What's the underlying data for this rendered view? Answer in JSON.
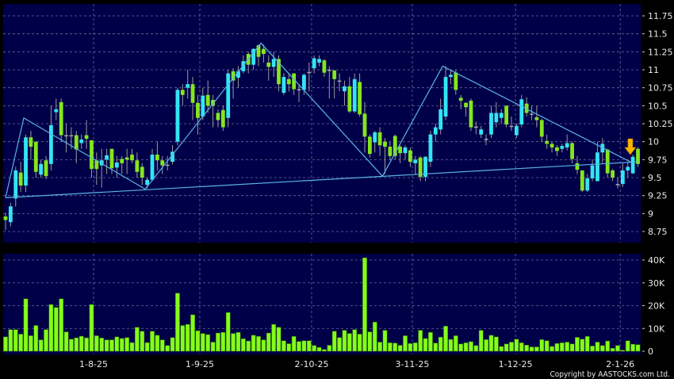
{
  "chart_data": [
    {
      "type": "candlestick",
      "panel": "price",
      "ylim": [
        8.7,
        11.9
      ],
      "yticks": [
        8.75,
        9,
        9.25,
        9.5,
        9.75,
        10,
        10.25,
        10.5,
        10.75,
        11,
        11.25,
        11.5,
        11.75
      ],
      "grid": true,
      "colors": {
        "up": "#33e4f4",
        "down": "#84e61c",
        "unchanged": "#a8a8a8",
        "wick": "#9a9a9a",
        "trendline": "#5ab4e6",
        "background": "#000048",
        "marker": "#f5b400"
      },
      "ohlc": [
        [
          8.96,
          9.01,
          8.77,
          8.91
        ],
        [
          8.88,
          9.15,
          8.82,
          9.1
        ],
        [
          9.21,
          9.65,
          9.1,
          9.6
        ],
        [
          9.57,
          9.72,
          9.3,
          9.39
        ],
        [
          9.39,
          10.1,
          9.3,
          10.06
        ],
        [
          10.06,
          10.15,
          9.75,
          9.93
        ],
        [
          10.0,
          10.0,
          9.5,
          9.58
        ],
        [
          9.54,
          9.75,
          9.5,
          9.69
        ],
        [
          9.74,
          9.8,
          9.48,
          9.52
        ],
        [
          9.69,
          10.5,
          9.6,
          10.23
        ],
        [
          10.41,
          10.6,
          10.3,
          10.45
        ],
        [
          10.55,
          10.6,
          10.0,
          10.09
        ],
        [
          10.09,
          10.25,
          9.85,
          10.09
        ],
        [
          10.09,
          10.2,
          9.9,
          10.09
        ],
        [
          10.09,
          10.15,
          9.7,
          9.89
        ],
        [
          9.98,
          10.1,
          9.9,
          10.03
        ],
        [
          10.09,
          10.3,
          9.9,
          10.04
        ],
        [
          10.02,
          10.02,
          9.5,
          9.62
        ],
        [
          9.74,
          9.85,
          9.4,
          9.62
        ],
        [
          9.67,
          9.9,
          9.36,
          9.74
        ],
        [
          9.75,
          9.9,
          9.55,
          9.81
        ],
        [
          9.9,
          9.9,
          9.55,
          9.63
        ],
        [
          9.64,
          9.8,
          9.5,
          9.71
        ],
        [
          9.76,
          9.8,
          9.55,
          9.7
        ],
        [
          9.78,
          9.9,
          9.55,
          9.75
        ],
        [
          9.82,
          9.9,
          9.7,
          9.74
        ],
        [
          9.74,
          9.85,
          9.5,
          9.58
        ],
        [
          9.65,
          9.7,
          9.4,
          9.5
        ],
        [
          9.4,
          9.5,
          9.35,
          9.47
        ],
        [
          9.47,
          9.9,
          9.45,
          9.82
        ],
        [
          9.82,
          10.0,
          9.6,
          9.74
        ],
        [
          9.74,
          9.8,
          9.55,
          9.67
        ],
        [
          9.68,
          9.8,
          9.6,
          9.68
        ],
        [
          9.72,
          9.95,
          9.68,
          9.86
        ],
        [
          10.0,
          10.75,
          9.95,
          10.72
        ],
        [
          10.72,
          10.8,
          10.5,
          10.65
        ],
        [
          10.75,
          11.0,
          10.6,
          10.8
        ],
        [
          10.8,
          10.9,
          10.3,
          10.54
        ],
        [
          10.54,
          10.65,
          10.1,
          10.33
        ],
        [
          10.35,
          10.75,
          10.3,
          10.64
        ],
        [
          10.65,
          10.85,
          10.4,
          10.5
        ],
        [
          10.58,
          10.65,
          10.2,
          10.5
        ],
        [
          10.4,
          10.45,
          10.2,
          10.3
        ],
        [
          10.44,
          10.5,
          10.15,
          10.2
        ],
        [
          10.33,
          11.0,
          10.2,
          10.95
        ],
        [
          10.98,
          11.02,
          10.6,
          10.85
        ],
        [
          10.89,
          11.05,
          10.75,
          10.98
        ],
        [
          10.98,
          11.2,
          10.95,
          11.12
        ],
        [
          11.22,
          11.25,
          10.95,
          11.07
        ],
        [
          11.07,
          11.3,
          11.0,
          11.29
        ],
        [
          11.34,
          11.35,
          11.05,
          11.18
        ],
        [
          11.29,
          11.35,
          11.1,
          11.22
        ],
        [
          11.1,
          11.2,
          10.85,
          11.04
        ],
        [
          11.04,
          11.25,
          10.9,
          11.15
        ],
        [
          11.15,
          11.2,
          10.7,
          10.8
        ],
        [
          10.68,
          10.95,
          10.65,
          10.9
        ],
        [
          10.87,
          10.95,
          10.7,
          10.8
        ],
        [
          10.95,
          10.95,
          10.65,
          10.73
        ],
        [
          10.73,
          10.8,
          10.55,
          10.73
        ],
        [
          10.72,
          10.95,
          10.65,
          10.93
        ],
        [
          10.97,
          11.1,
          10.7,
          10.97
        ],
        [
          11.02,
          11.2,
          10.95,
          11.16
        ],
        [
          11.1,
          11.2,
          11.05,
          11.15
        ],
        [
          11.13,
          11.15,
          10.9,
          10.96
        ],
        [
          11.0,
          11.05,
          10.6,
          11.0
        ],
        [
          10.99,
          11.0,
          10.6,
          10.87
        ],
        [
          10.85,
          10.95,
          10.7,
          10.85
        ],
        [
          10.7,
          10.85,
          10.5,
          10.77
        ],
        [
          10.77,
          10.9,
          10.4,
          10.42
        ],
        [
          10.42,
          10.95,
          10.4,
          10.87
        ],
        [
          10.83,
          10.95,
          10.35,
          10.38
        ],
        [
          10.39,
          10.55,
          9.85,
          10.07
        ],
        [
          10.07,
          10.1,
          9.78,
          9.83
        ],
        [
          9.99,
          10.15,
          9.85,
          10.13
        ],
        [
          10.13,
          10.2,
          9.8,
          9.95
        ],
        [
          10.0,
          10.05,
          9.55,
          9.93
        ],
        [
          9.93,
          10.0,
          9.75,
          9.8
        ],
        [
          10.08,
          10.1,
          9.75,
          9.8
        ],
        [
          9.93,
          9.95,
          9.7,
          9.84
        ],
        [
          9.84,
          9.95,
          9.75,
          9.92
        ],
        [
          9.88,
          9.92,
          9.65,
          9.72
        ],
        [
          9.7,
          9.8,
          9.55,
          9.75
        ],
        [
          9.78,
          9.8,
          9.45,
          9.51
        ],
        [
          9.51,
          9.8,
          9.45,
          9.79
        ],
        [
          9.72,
          10.15,
          9.65,
          10.1
        ],
        [
          10.1,
          10.25,
          10.0,
          10.2
        ],
        [
          10.17,
          10.6,
          10.1,
          10.45
        ],
        [
          10.35,
          11.05,
          10.3,
          10.9
        ],
        [
          10.9,
          11.0,
          10.8,
          10.93
        ],
        [
          10.96,
          11.0,
          10.65,
          10.72
        ],
        [
          10.61,
          10.65,
          10.45,
          10.57
        ],
        [
          10.54,
          10.55,
          10.35,
          10.48
        ],
        [
          10.57,
          10.6,
          10.15,
          10.2
        ],
        [
          10.21,
          10.28,
          10.1,
          10.21
        ],
        [
          10.1,
          10.22,
          10.05,
          10.17
        ],
        [
          10.04,
          10.1,
          9.95,
          10.04
        ],
        [
          10.1,
          10.5,
          10.05,
          10.4
        ],
        [
          10.27,
          10.55,
          10.2,
          10.4
        ],
        [
          10.33,
          10.45,
          10.25,
          10.4
        ],
        [
          10.5,
          10.5,
          10.2,
          10.24
        ],
        [
          10.22,
          10.35,
          10.15,
          10.22
        ],
        [
          10.09,
          10.25,
          10.05,
          10.22
        ],
        [
          10.24,
          10.65,
          10.2,
          10.59
        ],
        [
          10.53,
          10.62,
          10.35,
          10.4
        ],
        [
          10.39,
          10.5,
          10.3,
          10.39
        ],
        [
          10.34,
          10.5,
          10.2,
          10.3
        ],
        [
          10.3,
          10.32,
          10.0,
          10.07
        ],
        [
          10.01,
          10.1,
          9.9,
          9.97
        ],
        [
          9.97,
          10.0,
          9.85,
          9.92
        ],
        [
          9.92,
          9.95,
          9.8,
          9.87
        ],
        [
          9.9,
          9.97,
          9.85,
          9.94
        ],
        [
          9.92,
          10.1,
          9.88,
          9.98
        ],
        [
          9.98,
          10.0,
          9.7,
          9.76
        ],
        [
          9.7,
          9.8,
          9.55,
          9.61
        ],
        [
          9.6,
          9.6,
          9.3,
          9.32
        ],
        [
          9.32,
          9.55,
          9.3,
          9.49
        ],
        [
          9.49,
          9.75,
          9.45,
          9.67
        ],
        [
          9.45,
          10.0,
          9.45,
          9.85
        ],
        [
          9.85,
          10.05,
          9.7,
          9.97
        ],
        [
          9.89,
          9.9,
          9.5,
          9.56
        ],
        [
          9.6,
          9.62,
          9.45,
          9.5
        ],
        [
          9.41,
          9.5,
          9.35,
          9.41
        ],
        [
          9.41,
          9.7,
          9.37,
          9.6
        ],
        [
          9.6,
          9.72,
          9.5,
          9.65
        ],
        [
          9.56,
          9.82,
          9.55,
          9.79
        ],
        [
          9.9,
          9.92,
          9.65,
          9.69
        ]
      ],
      "trendlines": [
        {
          "points": [
            [
              0,
              9.22
            ],
            [
              3.6,
              10.33
            ],
            [
              27.6,
              9.34
            ],
            [
              50.5,
              11.37
            ],
            [
              74.5,
              9.52
            ],
            [
              86.4,
              11.05
            ],
            [
              123.5,
              9.72
            ]
          ]
        },
        {
          "points": [
            [
              0,
              9.22
            ],
            [
              125,
              9.72
            ]
          ]
        }
      ],
      "marker": {
        "type": "down-arrow",
        "bar": 123.5,
        "price": 9.82
      }
    },
    {
      "type": "bar",
      "panel": "volume",
      "ylim": [
        0,
        44000
      ],
      "yticks": [
        {
          "value": 0,
          "label": "0"
        },
        {
          "value": 10000,
          "label": "10K"
        },
        {
          "value": 20000,
          "label": "20K"
        },
        {
          "value": 30000,
          "label": "30K"
        },
        {
          "value": 40000,
          "label": "40K"
        }
      ],
      "grid": true,
      "colors": {
        "bar": "#84ff1a",
        "bar_edge": "#3a7a08"
      },
      "values_k": [
        6.3,
        9.5,
        9.5,
        7.5,
        23,
        6.8,
        11.3,
        5,
        9.5,
        20.5,
        19.2,
        23,
        8.5,
        5.3,
        5.9,
        6.6,
        5.9,
        20.5,
        6.8,
        5.8,
        5,
        5,
        6.3,
        5.6,
        6,
        3.8,
        10.5,
        8.8,
        3.8,
        8.8,
        7,
        5,
        2.5,
        6,
        25.5,
        11.3,
        11.8,
        16,
        9,
        7.8,
        7.3,
        4,
        8,
        8.3,
        17,
        7.8,
        8.3,
        5.5,
        4.5,
        7,
        6.5,
        5,
        8,
        11.8,
        10.5,
        4.6,
        3.3,
        6.5,
        4.3,
        4.6,
        4.6,
        2.5,
        1.7,
        0.8,
        2.6,
        8.8,
        6,
        9.2,
        7.8,
        9.5,
        7.5,
        41,
        8.5,
        12.8,
        4,
        9.2,
        3.7,
        3.6,
        2.6,
        6.8,
        3.4,
        3.7,
        9.2,
        5.6,
        8.3,
        3.6,
        6.2,
        11,
        5.2,
        6.8,
        3.2,
        3.7,
        4.2,
        2.5,
        9.2,
        5.1,
        7,
        6.3,
        2.1,
        3.2,
        4,
        5.3,
        3.7,
        2.7,
        1.9,
        1.9,
        5.1,
        4.6,
        2.1,
        3.4,
        3.7,
        4,
        3.2,
        6.1,
        5.3,
        6.5,
        2.3,
        4,
        2.5,
        4.5,
        1.3,
        2.5,
        0.5,
        4.6,
        3.1,
        2.9
      ]
    }
  ],
  "xaxis": {
    "ticks": [
      {
        "label": "1-8-25",
        "bar": 17.4
      },
      {
        "label": "1-9-25",
        "bar": 38.4
      },
      {
        "label": "2-10-25",
        "bar": 60.5
      },
      {
        "label": "3-11-25",
        "bar": 80.4
      },
      {
        "label": "1-12-25",
        "bar": 100.8
      },
      {
        "label": "2-1-26",
        "bar": 121.5
      }
    ]
  },
  "copyright": "Copyright by AASTOCKS.com Ltd."
}
